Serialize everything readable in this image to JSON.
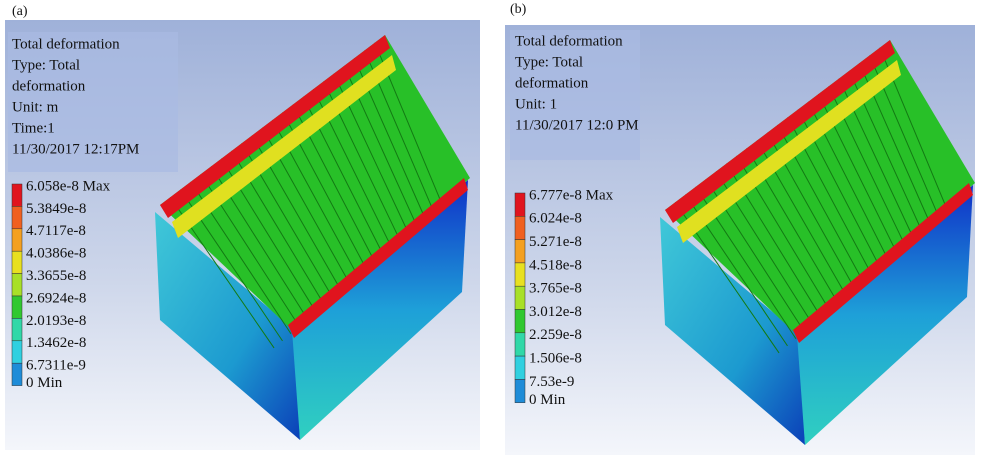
{
  "panels": [
    {
      "label": "(a)",
      "info": [
        "Total deformation",
        "Type: Total",
        "deformation",
        "Unit: m",
        "Time:1",
        "11/30/2017 12:17PM"
      ],
      "legend": [
        "6.058e-8 Max",
        "5.3849e-8",
        "4.7117e-8",
        "4.0386e-8",
        "3.3655e-8",
        "2.6924e-8",
        "2.0193e-8",
        "1.3462e-8",
        "6.7311e-9",
        "0 Min"
      ]
    },
    {
      "label": "(b)",
      "info": [
        "Total deformation",
        "Type:  Total",
        "deformation",
        "Unit: 1",
        "11/30/2017 12:0 PM"
      ],
      "legend": [
        "6.777e-8 Max",
        "6.024e-8",
        "5.271e-8",
        "4.518e-8",
        "3.765e-8",
        "3.012e-8",
        "2.259e-8",
        "1.506e-8",
        "7.53e-9",
        "0 Min"
      ]
    }
  ]
}
